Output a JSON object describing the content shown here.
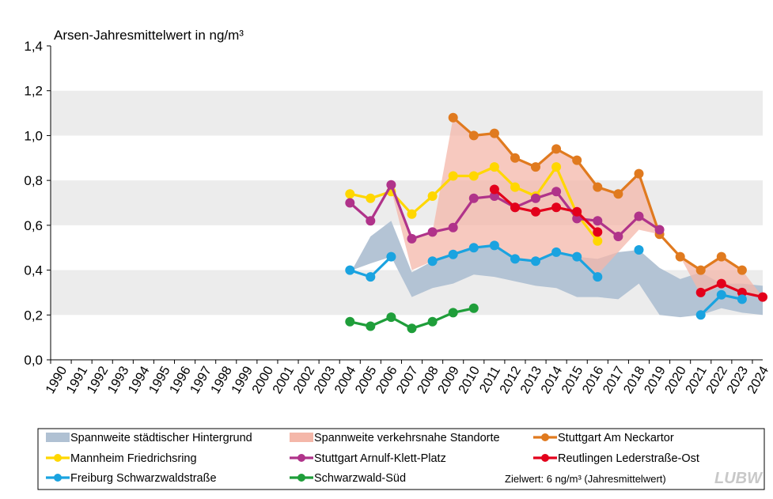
{
  "chart_data": {
    "type": "line",
    "title": "Arsen-Jahresmittelwert  in ng/m³",
    "ylim": [
      0,
      1.4
    ],
    "yticks": [
      "0,0",
      "0,2",
      "0,4",
      "0,6",
      "0,8",
      "1,0",
      "1,2",
      "1,4"
    ],
    "categories": [
      "1990",
      "1991",
      "1992",
      "1993",
      "1994",
      "1995",
      "1996",
      "1997",
      "1998",
      "1999",
      "2000",
      "2001",
      "2002",
      "2003",
      "2004",
      "2005",
      "2006",
      "2007",
      "2008",
      "2009",
      "2010",
      "2011",
      "2012",
      "2013",
      "2014",
      "2015",
      "2016",
      "2017",
      "2018",
      "2019",
      "2020",
      "2021",
      "2022",
      "2023",
      "2024"
    ],
    "grid": "horizontal bands",
    "legend_position": "bottom",
    "ranges": [
      {
        "name": "Spannweite städtischer Hintergrund",
        "color": "#b0c1d3",
        "x": [
          2004,
          2004.1,
          2005,
          2006,
          2007,
          2008,
          2009,
          2010,
          2011,
          2012,
          2013,
          2014,
          2015,
          2016,
          2017,
          2018,
          2019,
          2020,
          2021,
          2022,
          2023,
          2024
        ],
        "lower": [
          0.27,
          0.4,
          0.43,
          0.46,
          0.28,
          0.32,
          0.34,
          0.38,
          0.37,
          0.35,
          0.33,
          0.32,
          0.28,
          0.28,
          0.27,
          0.34,
          0.2,
          0.19,
          0.2,
          0.23,
          0.21,
          0.2
        ],
        "upper": [
          0.27,
          0.4,
          0.55,
          0.62,
          0.39,
          0.44,
          0.47,
          0.5,
          0.51,
          0.45,
          0.44,
          0.48,
          0.46,
          0.45,
          0.48,
          0.49,
          0.41,
          0.36,
          0.39,
          0.34,
          0.34,
          0.33
        ]
      },
      {
        "name": "Spannweite verkehrsnahe Standorte",
        "color": "#f4b7a9",
        "x": [
          2004,
          2005,
          2006,
          2007,
          2008,
          2009,
          2010,
          2011,
          2012,
          2013,
          2014,
          2015,
          2016,
          2017,
          2018,
          2019,
          2020,
          2021,
          2022,
          2023,
          2024
        ],
        "lower": [
          0.63,
          0.63,
          0.76,
          0.4,
          0.44,
          0.46,
          0.5,
          0.51,
          0.45,
          0.44,
          0.48,
          0.46,
          0.38,
          0.48,
          0.58,
          0.56,
          0.46,
          0.29,
          0.33,
          0.3,
          0.28
        ],
        "upper": [
          0.63,
          0.63,
          0.76,
          0.54,
          0.57,
          1.08,
          1.0,
          1.01,
          0.9,
          0.86,
          0.94,
          0.89,
          0.77,
          0.74,
          0.83,
          0.56,
          0.46,
          0.4,
          0.46,
          0.4,
          0.28
        ]
      }
    ],
    "series": [
      {
        "name": "Stuttgart Am Neckartor",
        "color": "#e07a1f",
        "points": [
          [
            2009,
            1.08
          ],
          [
            2010,
            1.0
          ],
          [
            2011,
            1.01
          ],
          [
            2012,
            0.9
          ],
          [
            2013,
            0.86
          ],
          [
            2014,
            0.94
          ],
          [
            2015,
            0.89
          ],
          [
            2016,
            0.77
          ],
          [
            2017,
            0.74
          ],
          [
            2018,
            0.83
          ],
          [
            2019,
            0.56
          ],
          [
            2020,
            0.46
          ],
          [
            2021,
            0.4
          ],
          [
            2022,
            0.46
          ],
          [
            2023,
            0.4
          ]
        ]
      },
      {
        "name": "Mannheim Friedrichsring",
        "color": "#ffd700",
        "points": [
          [
            2004,
            0.74
          ],
          [
            2005,
            0.72
          ],
          [
            2006,
            0.75
          ],
          [
            2007,
            0.65
          ],
          [
            2008,
            0.73
          ],
          [
            2009,
            0.82
          ],
          [
            2010,
            0.82
          ],
          [
            2011,
            0.86
          ],
          [
            2012,
            0.77
          ],
          [
            2013,
            0.73
          ],
          [
            2014,
            0.86
          ],
          [
            2015,
            0.65
          ],
          [
            2016,
            0.53
          ]
        ]
      },
      {
        "name": "Stuttgart Arnulf-Klett-Platz",
        "color": "#b0338a",
        "points": [
          [
            2004,
            0.7
          ],
          [
            2005,
            0.62
          ],
          [
            2006,
            0.78
          ],
          [
            2007,
            0.54
          ],
          [
            2008,
            0.57
          ],
          [
            2009,
            0.59
          ],
          [
            2010,
            0.72
          ],
          [
            2011,
            0.73
          ],
          [
            2012,
            0.68
          ],
          [
            2013,
            0.72
          ],
          [
            2014,
            0.75
          ],
          [
            2015,
            0.63
          ],
          [
            2016,
            0.62
          ],
          [
            2017,
            0.55
          ],
          [
            2018,
            0.64
          ],
          [
            2019,
            0.58
          ]
        ]
      },
      {
        "name": "Reutlingen Lederstraße-Ost",
        "color": "#e3001b",
        "points": [
          [
            2011,
            0.76
          ],
          [
            2012,
            0.68
          ],
          [
            2013,
            0.66
          ],
          [
            2014,
            0.68
          ],
          [
            2015,
            0.66
          ],
          [
            2016,
            0.57
          ],
          null,
          null,
          null,
          null,
          [
            2021,
            0.3
          ],
          [
            2022,
            0.34
          ],
          [
            2023,
            0.3
          ],
          [
            2024,
            0.28
          ]
        ]
      },
      {
        "name": "Freiburg Schwarzwaldstraße",
        "color": "#1aa3e0",
        "points": [
          [
            2004,
            0.4
          ],
          [
            2005,
            0.37
          ],
          [
            2006,
            0.46
          ],
          null,
          [
            2008,
            0.44
          ],
          [
            2009,
            0.47
          ],
          [
            2010,
            0.5
          ],
          [
            2011,
            0.51
          ],
          [
            2012,
            0.45
          ],
          [
            2013,
            0.44
          ],
          [
            2014,
            0.48
          ],
          [
            2015,
            0.46
          ],
          [
            2016,
            0.37
          ],
          null,
          [
            2018,
            0.49
          ],
          null,
          null,
          [
            2021,
            0.2
          ],
          [
            2022,
            0.29
          ],
          [
            2023,
            0.27
          ]
        ]
      },
      {
        "name": "Schwarzwald-Süd",
        "color": "#1f9e3a",
        "points": [
          [
            2004,
            0.17
          ],
          [
            2005,
            0.15
          ],
          [
            2006,
            0.19
          ],
          [
            2007,
            0.14
          ],
          [
            2008,
            0.17
          ],
          [
            2009,
            0.21
          ],
          [
            2010,
            0.23
          ]
        ]
      }
    ],
    "legend": [
      {
        "label": "Spannweite städtischer Hintergrund",
        "kind": "area",
        "color": "#b0c1d3"
      },
      {
        "label": "Spannweite verkehrsnahe Standorte",
        "kind": "area",
        "color": "#f4b7a9"
      },
      {
        "label": "Stuttgart Am Neckartor",
        "kind": "line",
        "color": "#e07a1f"
      },
      {
        "label": "Mannheim Friedrichsring",
        "kind": "line",
        "color": "#ffd700"
      },
      {
        "label": "Stuttgart Arnulf-Klett-Platz",
        "kind": "line",
        "color": "#b0338a"
      },
      {
        "label": "Reutlingen Lederstraße-Ost",
        "kind": "line",
        "color": "#e3001b"
      },
      {
        "label": "Freiburg Schwarzwaldstraße",
        "kind": "line",
        "color": "#1aa3e0"
      },
      {
        "label": "Schwarzwald-Süd",
        "kind": "line",
        "color": "#1f9e3a"
      }
    ],
    "note": "Zielwert:  6 ng/m³  (Jahresmittelwert)",
    "logo": "LUBW",
    "band_color": "#ececec"
  }
}
